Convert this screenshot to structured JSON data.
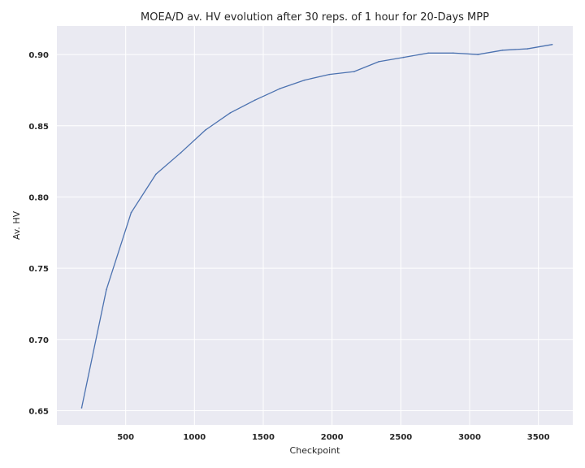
{
  "chart_data": {
    "type": "line",
    "title": "MOEA/D av. HV evolution after 30 reps. of 1 hour for 20-Days MPP",
    "xlabel": "Checkpoint",
    "ylabel": "Av. HV",
    "xlim": [
      0,
      3750
    ],
    "ylim": [
      0.64,
      0.92
    ],
    "xticks": [
      500,
      1000,
      1500,
      2000,
      2500,
      3000,
      3500
    ],
    "yticks": [
      0.65,
      0.7,
      0.75,
      0.8,
      0.85,
      0.9
    ],
    "xtick_labels": [
      "500",
      "1000",
      "1500",
      "2000",
      "2500",
      "3000",
      "3500"
    ],
    "ytick_labels": [
      "0.65",
      "0.70",
      "0.75",
      "0.80",
      "0.85",
      "0.90"
    ],
    "grid": true,
    "background_color": "#eaeaf2",
    "grid_color": "#ffffff",
    "series": [
      {
        "color": "#4c72b0",
        "x": [
          180,
          360,
          540,
          720,
          900,
          1080,
          1260,
          1440,
          1620,
          1800,
          1980,
          2160,
          2340,
          2520,
          2700,
          2880,
          3060,
          3240,
          3420,
          3600
        ],
        "y": [
          0.652,
          0.735,
          0.789,
          0.816,
          0.831,
          0.847,
          0.859,
          0.868,
          0.876,
          0.882,
          0.886,
          0.888,
          0.895,
          0.898,
          0.901,
          0.901,
          0.9,
          0.903,
          0.904,
          0.907
        ]
      }
    ]
  }
}
